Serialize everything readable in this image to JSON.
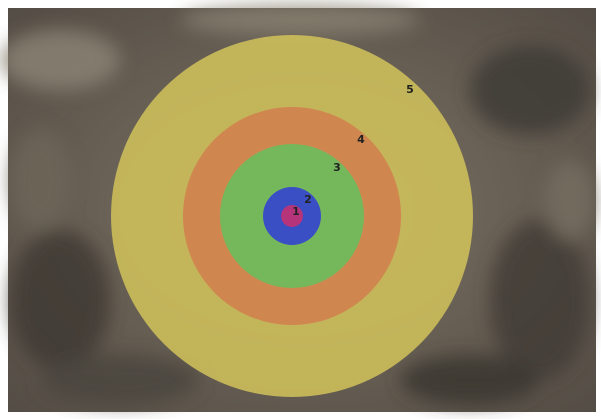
{
  "rings": [
    {
      "label": "1"
    },
    {
      "label": "2"
    },
    {
      "label": "3"
    },
    {
      "label": "4"
    },
    {
      "label": "5"
    }
  ]
}
